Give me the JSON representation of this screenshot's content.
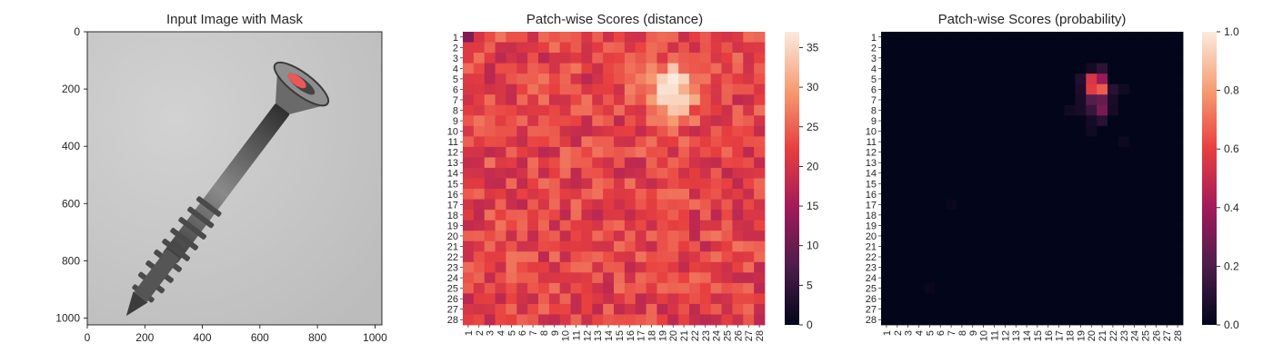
{
  "chart_data": [
    {
      "type": "image",
      "title": "Input Image with Mask",
      "xlim": [
        0,
        1024
      ],
      "ylim": [
        1024,
        0
      ],
      "x_ticks": [
        "0",
        "200",
        "400",
        "600",
        "800",
        "1000"
      ],
      "y_ticks": [
        "0",
        "200",
        "400",
        "600",
        "800",
        "1000"
      ],
      "content": "grayscale photo of a screw on gray background",
      "mask_color": "#ff5a5a"
    },
    {
      "type": "heatmap",
      "title": "Patch-wise Scores (distance)",
      "rows": 28,
      "cols": 28,
      "row_labels": [
        "1",
        "2",
        "3",
        "4",
        "5",
        "6",
        "7",
        "8",
        "9",
        "10",
        "11",
        "12",
        "13",
        "14",
        "15",
        "16",
        "17",
        "18",
        "19",
        "20",
        "21",
        "22",
        "23",
        "24",
        "25",
        "26",
        "27",
        "28"
      ],
      "col_labels": [
        "1",
        "2",
        "3",
        "4",
        "5",
        "6",
        "7",
        "8",
        "9",
        "10",
        "11",
        "12",
        "13",
        "14",
        "15",
        "16",
        "17",
        "18",
        "19",
        "20",
        "21",
        "22",
        "23",
        "24",
        "25",
        "26",
        "27",
        "28"
      ],
      "vmin": 0,
      "vmax": 37,
      "colorbar_ticks": [
        "0",
        "5",
        "10",
        "15",
        "20",
        "25",
        "30",
        "35"
      ],
      "colormap": "rocket",
      "baseline_value": 22,
      "peak": {
        "row": 6,
        "col": 20,
        "value": 37
      }
    },
    {
      "type": "heatmap",
      "title": "Patch-wise Scores (probability)",
      "rows": 28,
      "cols": 28,
      "row_labels": [
        "1",
        "2",
        "3",
        "4",
        "5",
        "6",
        "7",
        "8",
        "9",
        "10",
        "11",
        "12",
        "13",
        "14",
        "15",
        "16",
        "17",
        "18",
        "19",
        "20",
        "21",
        "22",
        "23",
        "24",
        "25",
        "26",
        "27",
        "28"
      ],
      "col_labels": [
        "1",
        "2",
        "3",
        "4",
        "5",
        "6",
        "7",
        "8",
        "9",
        "10",
        "11",
        "12",
        "13",
        "14",
        "15",
        "16",
        "17",
        "18",
        "19",
        "20",
        "21",
        "22",
        "23",
        "24",
        "25",
        "26",
        "27",
        "28"
      ],
      "vmin": 0.0,
      "vmax": 1.0,
      "colorbar_ticks": [
        "0.0",
        "0.2",
        "0.4",
        "0.6",
        "0.8",
        "1.0"
      ],
      "colormap": "rocket",
      "nonzero_cells": [
        {
          "row": 4,
          "col": 20,
          "value": 0.05
        },
        {
          "row": 4,
          "col": 21,
          "value": 0.12
        },
        {
          "row": 5,
          "col": 19,
          "value": 0.08
        },
        {
          "row": 5,
          "col": 20,
          "value": 0.55
        },
        {
          "row": 5,
          "col": 21,
          "value": 0.38
        },
        {
          "row": 6,
          "col": 19,
          "value": 0.07
        },
        {
          "row": 6,
          "col": 20,
          "value": 0.58
        },
        {
          "row": 6,
          "col": 21,
          "value": 0.66
        },
        {
          "row": 6,
          "col": 22,
          "value": 0.1
        },
        {
          "row": 6,
          "col": 23,
          "value": 0.04
        },
        {
          "row": 7,
          "col": 19,
          "value": 0.06
        },
        {
          "row": 7,
          "col": 20,
          "value": 0.22
        },
        {
          "row": 7,
          "col": 21,
          "value": 0.26
        },
        {
          "row": 7,
          "col": 22,
          "value": 0.06
        },
        {
          "row": 8,
          "col": 18,
          "value": 0.04
        },
        {
          "row": 8,
          "col": 19,
          "value": 0.06
        },
        {
          "row": 8,
          "col": 20,
          "value": 0.14
        },
        {
          "row": 8,
          "col": 21,
          "value": 0.3
        },
        {
          "row": 8,
          "col": 22,
          "value": 0.05
        },
        {
          "row": 9,
          "col": 20,
          "value": 0.05
        },
        {
          "row": 9,
          "col": 21,
          "value": 0.1
        },
        {
          "row": 10,
          "col": 20,
          "value": 0.04
        },
        {
          "row": 11,
          "col": 23,
          "value": 0.03
        },
        {
          "row": 17,
          "col": 7,
          "value": 0.02
        },
        {
          "row": 25,
          "col": 5,
          "value": 0.02
        }
      ]
    }
  ],
  "panels": [
    {
      "title": "Input Image with Mask"
    },
    {
      "title": "Patch-wise Scores (distance)"
    },
    {
      "title": "Patch-wise Scores (probability)"
    }
  ]
}
